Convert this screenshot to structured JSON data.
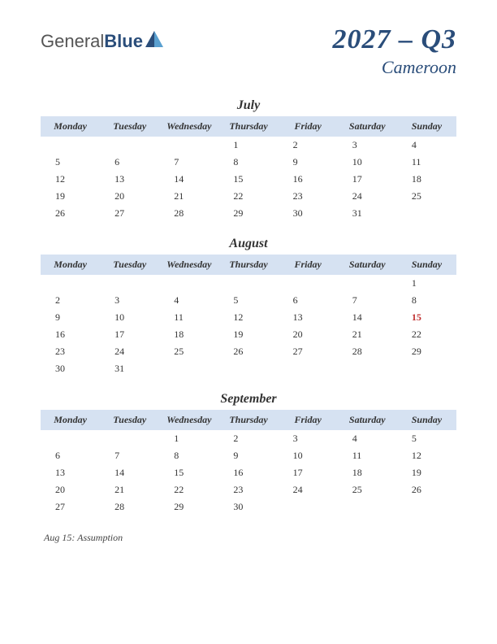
{
  "logo": {
    "part1": "General",
    "part2": "Blue"
  },
  "header": {
    "period": "2027 – Q3",
    "country": "Cameroon"
  },
  "day_headers": [
    "Monday",
    "Tuesday",
    "Wednesday",
    "Thursday",
    "Friday",
    "Saturday",
    "Sunday"
  ],
  "colors": {
    "brand": "#2a4d7a",
    "header_bg": "#d6e2f2",
    "holiday": "#c03030",
    "text": "#333333",
    "background": "#ffffff"
  },
  "typography": {
    "period_fontsize": 34,
    "country_fontsize": 22,
    "month_title_fontsize": 16,
    "day_header_fontsize": 12,
    "cell_fontsize": 12,
    "holiday_fontsize": 12,
    "font_family": "Georgia, serif"
  },
  "months": [
    {
      "name": "July",
      "weeks": [
        [
          "",
          "",
          "",
          "1",
          "2",
          "3",
          "4"
        ],
        [
          "5",
          "6",
          "7",
          "8",
          "9",
          "10",
          "11"
        ],
        [
          "12",
          "13",
          "14",
          "15",
          "16",
          "17",
          "18"
        ],
        [
          "19",
          "20",
          "21",
          "22",
          "23",
          "24",
          "25"
        ],
        [
          "26",
          "27",
          "28",
          "29",
          "30",
          "31",
          ""
        ]
      ],
      "holidays": []
    },
    {
      "name": "August",
      "weeks": [
        [
          "",
          "",
          "",
          "",
          "",
          "",
          "1"
        ],
        [
          "2",
          "3",
          "4",
          "5",
          "6",
          "7",
          "8"
        ],
        [
          "9",
          "10",
          "11",
          "12",
          "13",
          "14",
          "15"
        ],
        [
          "16",
          "17",
          "18",
          "19",
          "20",
          "21",
          "22"
        ],
        [
          "23",
          "24",
          "25",
          "26",
          "27",
          "28",
          "29"
        ],
        [
          "30",
          "31",
          "",
          "",
          "",
          "",
          ""
        ]
      ],
      "holidays": [
        {
          "row": 2,
          "col": 6
        }
      ]
    },
    {
      "name": "September",
      "weeks": [
        [
          "",
          "",
          "1",
          "2",
          "3",
          "4",
          "5"
        ],
        [
          "6",
          "7",
          "8",
          "9",
          "10",
          "11",
          "12"
        ],
        [
          "13",
          "14",
          "15",
          "16",
          "17",
          "18",
          "19"
        ],
        [
          "20",
          "21",
          "22",
          "23",
          "24",
          "25",
          "26"
        ],
        [
          "27",
          "28",
          "29",
          "30",
          "",
          "",
          ""
        ]
      ],
      "holidays": []
    }
  ],
  "holiday_list": [
    "Aug 15: Assumption"
  ]
}
